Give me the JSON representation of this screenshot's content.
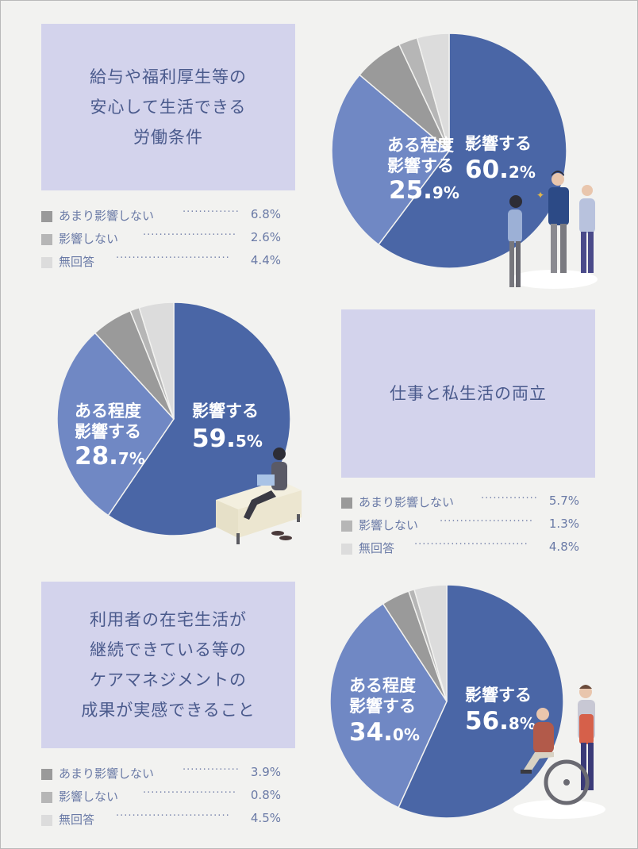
{
  "colors": {
    "strong": "#4a66a6",
    "moderate": "#7088c4",
    "little": "#9a9a9a",
    "none": "#b6b6b6",
    "noanswer": "#dcdcdc",
    "titlebg": "#d3d3ec",
    "text": "#4a5a8c"
  },
  "labels": {
    "strong": "影響する",
    "moderate_line1": "ある程度",
    "moderate_line2": "影響する",
    "little": "あまり影響しない",
    "none": "影響しない",
    "noanswer": "無回答"
  },
  "chart_data": [
    {
      "type": "pie",
      "title": "給与や福利厚生等の\n安心して生活できる\n労働条件",
      "slices": [
        {
          "key": "strong",
          "label": "影響する",
          "value": 60.2
        },
        {
          "key": "moderate",
          "label": "ある程度影響する",
          "value": 25.9
        },
        {
          "key": "little",
          "label": "あまり影響しない",
          "value": 6.8
        },
        {
          "key": "none",
          "label": "影響しない",
          "value": 2.6
        },
        {
          "key": "noanswer",
          "label": "無回答",
          "value": 4.4
        }
      ]
    },
    {
      "type": "pie",
      "title": "仕事と私生活の両立",
      "slices": [
        {
          "key": "strong",
          "label": "影響する",
          "value": 59.5
        },
        {
          "key": "moderate",
          "label": "ある程度影響する",
          "value": 28.7
        },
        {
          "key": "little",
          "label": "あまり影響しない",
          "value": 5.7
        },
        {
          "key": "none",
          "label": "影響しない",
          "value": 1.3
        },
        {
          "key": "noanswer",
          "label": "無回答",
          "value": 4.8
        }
      ]
    },
    {
      "type": "pie",
      "title": "利用者の在宅生活が\n継続できている等の\nケアマネジメントの\n成果が実感できること",
      "slices": [
        {
          "key": "strong",
          "label": "影響する",
          "value": 56.8
        },
        {
          "key": "moderate",
          "label": "ある程度影響する",
          "value": 34.0
        },
        {
          "key": "little",
          "label": "あまり影響しない",
          "value": 3.9
        },
        {
          "key": "none",
          "label": "影響しない",
          "value": 0.8
        },
        {
          "key": "noanswer",
          "label": "無回答",
          "value": 4.5
        }
      ]
    }
  ],
  "legends": [
    {
      "little": "6.8%",
      "none": "2.6%",
      "noanswer": "4.4%"
    },
    {
      "little": "5.7%",
      "none": "1.3%",
      "noanswer": "4.8%"
    },
    {
      "little": "3.9%",
      "none": "0.8%",
      "noanswer": "4.5%"
    }
  ],
  "pie_labels": [
    {
      "strong_int": "60.",
      "strong_dec": "2%",
      "mod_int": "25.",
      "mod_dec": "9%"
    },
    {
      "strong_int": "59.",
      "strong_dec": "5%",
      "mod_int": "28.",
      "mod_dec": "7%"
    },
    {
      "strong_int": "56.",
      "strong_dec": "8%",
      "mod_int": "34.",
      "mod_dec": "0%"
    }
  ]
}
